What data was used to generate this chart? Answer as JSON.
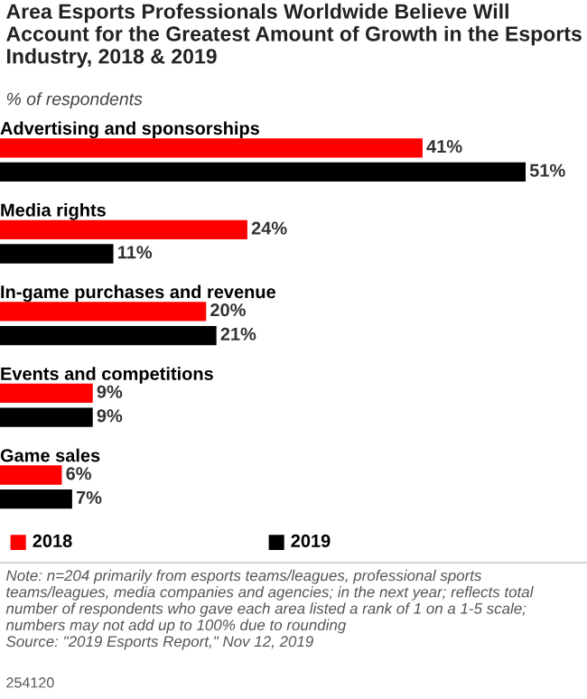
{
  "chart_data": {
    "type": "bar",
    "orientation": "horizontal",
    "title": "Area Esports Professionals Worldwide Believe Will Account for the Greatest Amount of Growth in the Esports Industry, 2018 & 2019",
    "subtitle": "% of respondents",
    "categories": [
      "Advertising and sponsorships",
      "Media rights",
      "In-game purchases and revenue",
      "Events and competitions",
      "Game sales"
    ],
    "series": [
      {
        "name": "2018",
        "color": "#ff0000",
        "values": [
          41,
          24,
          20,
          9,
          6
        ],
        "value_labels": [
          "41%",
          "24%",
          "20%",
          "9%",
          "6%"
        ]
      },
      {
        "name": "2019",
        "color": "#000000",
        "values": [
          51,
          11,
          21,
          9,
          7
        ],
        "value_labels": [
          "51%",
          "11%",
          "21%",
          "9%",
          "7%"
        ]
      }
    ],
    "legend": "bottom",
    "annotations": [
      "Note: n=204 primarily from esports teams/leagues, professional sports teams/leagues, media companies and agencies; in the next year; reflects total number of respondents who gave each area listed a rank of 1 on a 1-5 scale; numbers may not add up to 100% due to rounding",
      "Source: \"2019 Esports Report,\" Nov 12, 2019",
      "254120"
    ]
  }
}
